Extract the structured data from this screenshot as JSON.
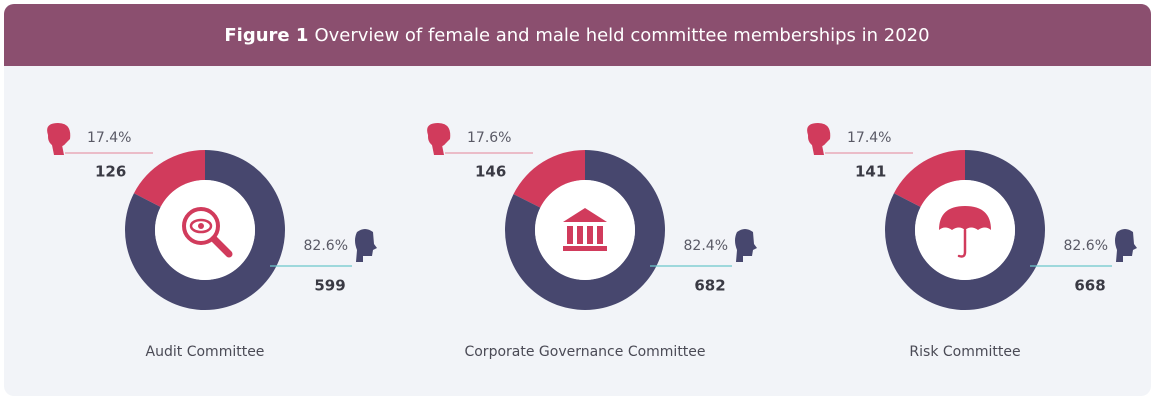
{
  "header": {
    "label": "Figure 1",
    "title": "Overview of female and male held committee memberships in 2020"
  },
  "chart_data": [
    {
      "type": "donut",
      "title": "Audit Committee",
      "values": [
        17.4,
        82.6
      ],
      "value_labels": [
        "17.4%",
        "82.6%"
      ],
      "counts": [
        126,
        599
      ],
      "colors": [
        "#d13b5c",
        "#47476e"
      ]
    },
    {
      "type": "donut",
      "title": "Corporate Governance Committee",
      "values": [
        17.6,
        82.4
      ],
      "value_labels": [
        "17.6%",
        "82.4%"
      ],
      "counts": [
        146,
        682
      ],
      "colors": [
        "#d13b5c",
        "#47476e"
      ]
    },
    {
      "type": "donut",
      "title": "Risk Committee",
      "values": [
        17.4,
        82.6
      ],
      "value_labels": [
        "17.4%",
        "82.6%"
      ],
      "counts": [
        141,
        668
      ],
      "colors": [
        "#d13b5c",
        "#47476e"
      ]
    }
  ]
}
